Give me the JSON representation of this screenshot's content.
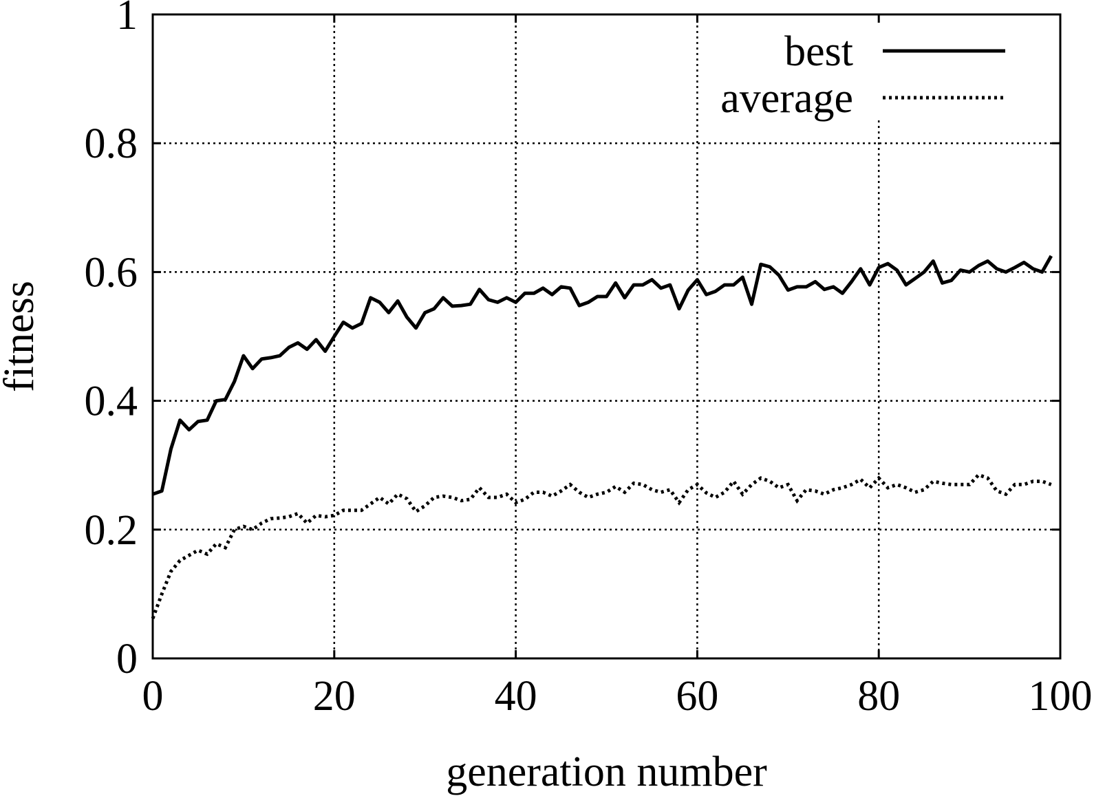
{
  "chart_data": {
    "type": "line",
    "title": "",
    "xlabel": "generation number",
    "ylabel": "fitness",
    "xlim": [
      0,
      100
    ],
    "ylim": [
      0,
      1
    ],
    "x_ticks": [
      "0",
      "20",
      "40",
      "60",
      "80",
      "100"
    ],
    "y_ticks": [
      "0",
      "0.2",
      "0.4",
      "0.6",
      "0.8",
      "1"
    ],
    "x_tick_values": [
      0,
      20,
      40,
      60,
      80,
      100
    ],
    "y_tick_values": [
      0,
      0.2,
      0.4,
      0.6,
      0.8,
      1
    ],
    "grid": true,
    "legend_position": "top-right",
    "series": [
      {
        "name": "best",
        "style": "solid",
        "color": "#000000",
        "x": [
          0,
          1,
          2,
          3,
          4,
          5,
          6,
          7,
          8,
          9,
          10,
          11,
          12,
          13,
          14,
          15,
          16,
          17,
          18,
          19,
          20,
          21,
          22,
          23,
          24,
          25,
          26,
          27,
          28,
          29,
          30,
          31,
          32,
          33,
          34,
          35,
          36,
          37,
          38,
          39,
          40,
          41,
          42,
          43,
          44,
          45,
          46,
          47,
          48,
          49,
          50,
          51,
          52,
          53,
          54,
          55,
          56,
          57,
          58,
          59,
          60,
          61,
          62,
          63,
          64,
          65,
          66,
          67,
          68,
          69,
          70,
          71,
          72,
          73,
          74,
          75,
          76,
          77,
          78,
          79,
          80,
          81,
          82,
          83,
          84,
          85,
          86,
          87,
          88,
          89,
          90,
          91,
          92,
          93,
          94,
          95,
          96,
          97,
          98,
          99
        ],
        "values": [
          0.255,
          0.26,
          0.325,
          0.37,
          0.355,
          0.368,
          0.37,
          0.4,
          0.402,
          0.43,
          0.47,
          0.45,
          0.465,
          0.467,
          0.47,
          0.483,
          0.49,
          0.48,
          0.495,
          0.477,
          0.5,
          0.522,
          0.513,
          0.52,
          0.56,
          0.553,
          0.537,
          0.555,
          0.53,
          0.513,
          0.537,
          0.543,
          0.56,
          0.547,
          0.548,
          0.55,
          0.573,
          0.557,
          0.553,
          0.56,
          0.553,
          0.567,
          0.567,
          0.575,
          0.565,
          0.577,
          0.575,
          0.548,
          0.553,
          0.562,
          0.562,
          0.583,
          0.56,
          0.58,
          0.58,
          0.588,
          0.575,
          0.58,
          0.543,
          0.572,
          0.588,
          0.565,
          0.57,
          0.58,
          0.58,
          0.592,
          0.55,
          0.612,
          0.608,
          0.595,
          0.572,
          0.577,
          0.577,
          0.585,
          0.573,
          0.577,
          0.567,
          0.585,
          0.605,
          0.58,
          0.607,
          0.613,
          0.603,
          0.58,
          0.59,
          0.6,
          0.617,
          0.583,
          0.587,
          0.603,
          0.6,
          0.61,
          0.617,
          0.605,
          0.6,
          0.607,
          0.615,
          0.605,
          0.6,
          0.625
        ]
      },
      {
        "name": "average",
        "style": "dotted",
        "color": "#000000",
        "x": [
          0,
          1,
          2,
          3,
          4,
          5,
          6,
          7,
          8,
          9,
          10,
          11,
          12,
          13,
          14,
          15,
          16,
          17,
          18,
          19,
          20,
          21,
          22,
          23,
          24,
          25,
          26,
          27,
          28,
          29,
          30,
          31,
          32,
          33,
          34,
          35,
          36,
          37,
          38,
          39,
          40,
          41,
          42,
          43,
          44,
          45,
          46,
          47,
          48,
          49,
          50,
          51,
          52,
          53,
          54,
          55,
          56,
          57,
          58,
          59,
          60,
          61,
          62,
          63,
          64,
          65,
          66,
          67,
          68,
          69,
          70,
          71,
          72,
          73,
          74,
          75,
          76,
          77,
          78,
          79,
          80,
          81,
          82,
          83,
          84,
          85,
          86,
          87,
          88,
          89,
          90,
          91,
          92,
          93,
          94,
          95,
          96,
          97,
          98,
          99
        ],
        "values": [
          0.062,
          0.1,
          0.135,
          0.152,
          0.16,
          0.168,
          0.162,
          0.178,
          0.172,
          0.2,
          0.205,
          0.2,
          0.21,
          0.217,
          0.218,
          0.22,
          0.225,
          0.21,
          0.222,
          0.22,
          0.222,
          0.23,
          0.23,
          0.23,
          0.24,
          0.25,
          0.24,
          0.255,
          0.248,
          0.228,
          0.237,
          0.25,
          0.252,
          0.25,
          0.245,
          0.247,
          0.265,
          0.25,
          0.25,
          0.255,
          0.242,
          0.247,
          0.258,
          0.258,
          0.252,
          0.26,
          0.27,
          0.258,
          0.25,
          0.255,
          0.258,
          0.267,
          0.258,
          0.272,
          0.27,
          0.262,
          0.258,
          0.262,
          0.242,
          0.262,
          0.27,
          0.257,
          0.25,
          0.258,
          0.275,
          0.255,
          0.27,
          0.28,
          0.275,
          0.265,
          0.27,
          0.245,
          0.262,
          0.26,
          0.255,
          0.262,
          0.265,
          0.27,
          0.278,
          0.265,
          0.28,
          0.265,
          0.27,
          0.265,
          0.258,
          0.262,
          0.275,
          0.272,
          0.27,
          0.27,
          0.27,
          0.285,
          0.28,
          0.26,
          0.255,
          0.27,
          0.27,
          0.275,
          0.275,
          0.27
        ]
      }
    ]
  }
}
